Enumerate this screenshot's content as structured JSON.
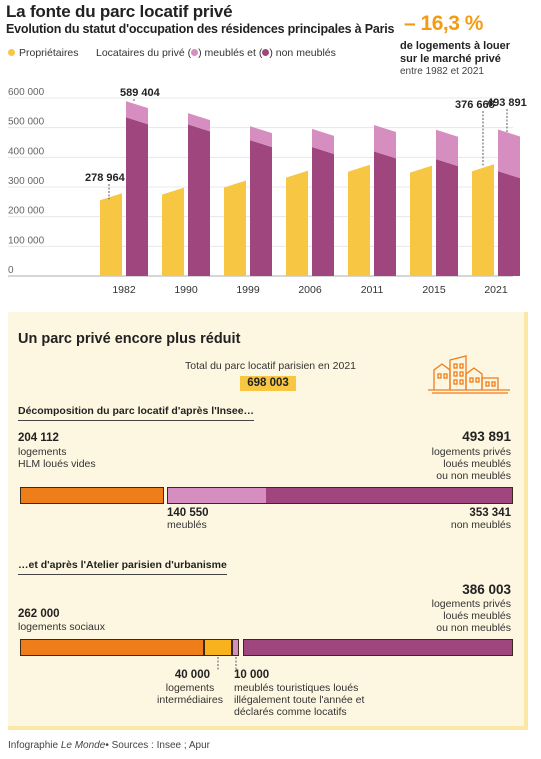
{
  "header": {
    "title": "La fonte du parc locatif privé",
    "subtitle": "Evolution du statut d'occupation des résidences principales à Paris"
  },
  "legend": {
    "owners": "Propriétaires",
    "tenants_prefix": "Locataires du privé (",
    "tenants_mid": ") meublés et (",
    "tenants_suffix": ") non meublés"
  },
  "kpi": {
    "value": "– 16,3 %",
    "line1": "de logements à louer",
    "line2": "sur le marché privé",
    "sub": "entre 1982 et 2021"
  },
  "chart_data": {
    "type": "bar",
    "categories": [
      "1982",
      "1990",
      "1999",
      "2006",
      "2011",
      "2015",
      "2021"
    ],
    "series": [
      {
        "name": "Propriétaires",
        "values": [
          278964,
          298000,
          322000,
          355000,
          375000,
          372000,
          376668
        ]
      },
      {
        "name": "non meublés",
        "values": [
          535000,
          511000,
          458000,
          435000,
          420000,
          394000,
          353341
        ]
      },
      {
        "name": "meublés",
        "values": [
          54404,
          38000,
          47000,
          61000,
          89000,
          99000,
          140550
        ]
      }
    ],
    "ylim": [
      0,
      600000
    ],
    "y_ticks": [
      0,
      100000,
      200000,
      300000,
      400000,
      500000,
      600000
    ],
    "y_tick_labels": [
      "0",
      "100 000",
      "200 000",
      "300 000",
      "400 000",
      "500 000",
      "600 000"
    ],
    "data_labels": [
      {
        "category": "1982",
        "series": "Propriétaires",
        "text": "278 964"
      },
      {
        "category": "1982",
        "series": "Locataires",
        "text": "589 404"
      },
      {
        "category": "2021",
        "series": "Propriétaires",
        "text": "376 668"
      },
      {
        "category": "2021",
        "series": "Locataires",
        "text": "493 891"
      }
    ],
    "colors": {
      "owners": "#f7c744",
      "unfurnished": "#a0467e",
      "furnished": "#d68dbf"
    },
    "grid": true
  },
  "panel": {
    "title": "Un parc privé encore plus réduit",
    "total_label": "Total du parc locatif parisien en 2021",
    "total_value": "698 003",
    "insee": {
      "heading": "Décomposition du parc locatif d'après l'Insee…",
      "left_value": "204 112",
      "left_label1": "logements",
      "left_label2": "HLM loués vides",
      "right_value": "493 891",
      "right_label1": "logements privés",
      "right_label2": "loués meublés",
      "right_label3": "ou non meublés",
      "furn_value": "140 550",
      "furn_label": "meublés",
      "unfurn_value": "353 341",
      "unfurn_label": "non meublés"
    },
    "apur": {
      "heading": "…et d'après l'Atelier parisien d'urbanisme",
      "left_value": "262 000",
      "left_label": "logements sociaux",
      "right_value": "386 003",
      "right_label1": "logements privés",
      "right_label2": "loués meublés",
      "right_label3": "ou non meublés",
      "mid_value": "40 000",
      "mid_label1": "logements",
      "mid_label2": "intermédiaires",
      "tour_value": "10 000",
      "tour_label1": "meublés touristiques loués",
      "tour_label2": "illégalement toute l'année et",
      "tour_label3": "déclarés comme locatifs"
    },
    "colors": {
      "social": "#ef7d1a",
      "intermediate": "#f7b21e",
      "furnished": "#d68dbf",
      "unfurnished": "#a0467e"
    }
  },
  "footer": {
    "prefix": "Infographie",
    "brand": "Le Monde",
    "sources": "• Sources : Insee ; Apur"
  }
}
